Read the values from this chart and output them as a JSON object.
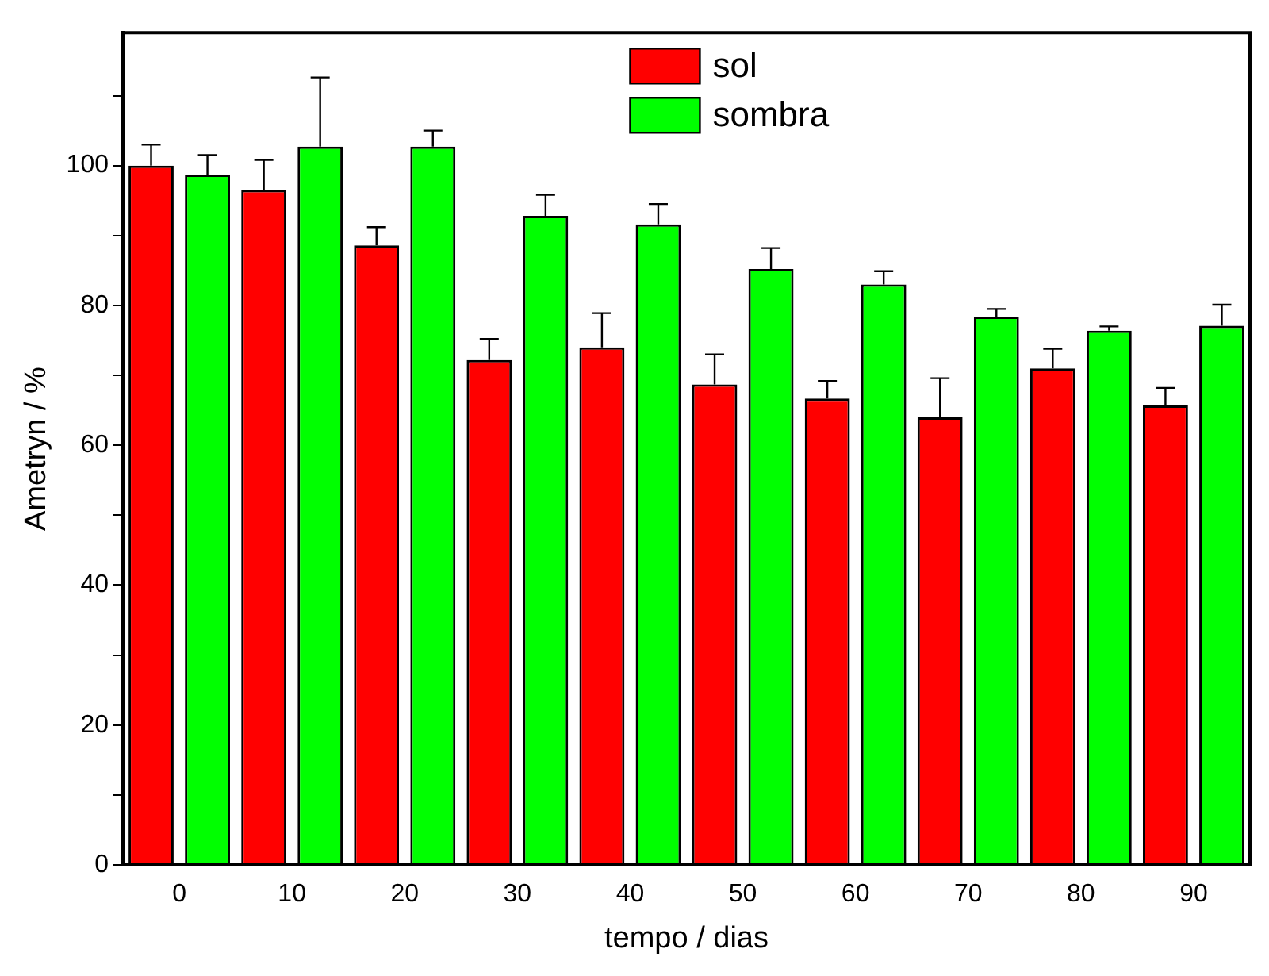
{
  "chart_data": {
    "type": "bar",
    "xlabel": "tempo / dias",
    "ylabel": "Ametryn / %",
    "categories": [
      "0",
      "10",
      "20",
      "30",
      "40",
      "50",
      "60",
      "70",
      "80",
      "90"
    ],
    "series": [
      {
        "name": "sol",
        "color": "#ff0000",
        "values": [
          100,
          96.5,
          88.6,
          72.2,
          74.0,
          68.7,
          66.7,
          64.0,
          71.0,
          65.7
        ],
        "errors": [
          [
            100,
            103.0
          ],
          [
            96.5,
            100.8
          ],
          [
            88.6,
            91.2
          ],
          [
            72.2,
            75.2
          ],
          [
            74.0,
            78.9
          ],
          [
            68.7,
            73.0
          ],
          [
            66.7,
            69.2
          ],
          [
            64.0,
            69.6
          ],
          [
            71.0,
            73.8
          ],
          [
            65.7,
            68.2
          ]
        ]
      },
      {
        "name": "sombra",
        "color": "#00ff00",
        "values": [
          98.7,
          102.7,
          102.7,
          92.8,
          91.6,
          85.2,
          83.0,
          78.4,
          76.4,
          77.1
        ],
        "errors": [
          [
            98.7,
            101.5
          ],
          [
            102.7,
            112.6
          ],
          [
            102.7,
            105.0
          ],
          [
            92.8,
            95.8
          ],
          [
            91.6,
            94.5
          ],
          [
            85.2,
            88.2
          ],
          [
            83.0,
            84.9
          ],
          [
            78.4,
            79.5
          ],
          [
            76.4,
            77.0
          ],
          [
            77.1,
            80.1
          ]
        ]
      }
    ],
    "ylim": [
      0,
      119
    ],
    "yticks": [
      0,
      {
        "value": 10,
        "label": null
      },
      20,
      {
        "value": 30,
        "label": null
      },
      40,
      {
        "value": 50,
        "label": null
      },
      60,
      {
        "value": 70,
        "label": null
      },
      80,
      {
        "value": 90,
        "label": null
      },
      100,
      {
        "value": 110,
        "label": null
      }
    ],
    "grid": false,
    "legend": "top"
  }
}
